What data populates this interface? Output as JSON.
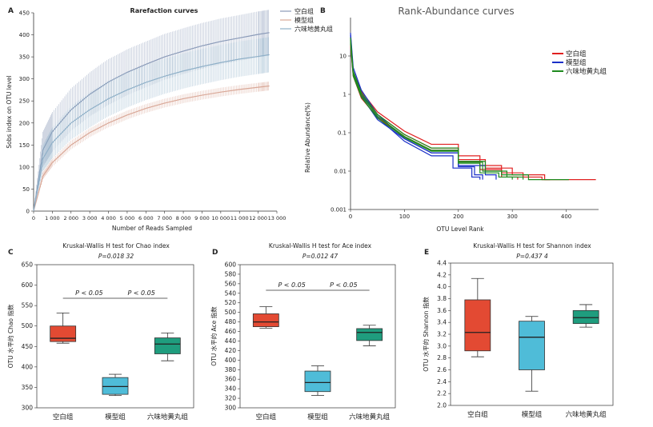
{
  "chart_data": [
    {
      "panel": "A",
      "type": "line",
      "title": "Rarefaction curves",
      "xlabel": "Number of Reads Sampled",
      "ylabel": "Sobs index on OTU level",
      "xlim": [
        0,
        13000
      ],
      "ylim": [
        0,
        450
      ],
      "xticks": [
        0,
        1000,
        2000,
        3000,
        4000,
        5000,
        6000,
        7000,
        8000,
        9000,
        10000,
        11000,
        12000,
        13000
      ],
      "xtick_labels": [
        "0",
        "1 000",
        "2 000",
        "3 000",
        "4 000",
        "5 000",
        "6 000",
        "7 000",
        "8 000",
        "9 000",
        "10 000",
        "11 000",
        "12 000",
        "13 000"
      ],
      "yticks": [
        0,
        50,
        100,
        150,
        200,
        250,
        300,
        350,
        400,
        450
      ],
      "legend": [
        "空白组",
        "模型组",
        "六味地黄丸组"
      ],
      "x": [
        0,
        500,
        1000,
        2000,
        3000,
        4000,
        5000,
        6000,
        7000,
        8000,
        9000,
        10000,
        11000,
        12000,
        12600
      ],
      "series": [
        {
          "name": "空白组",
          "color": "#8a9ab8",
          "values": [
            0,
            140,
            180,
            230,
            265,
            293,
            315,
            333,
            350,
            363,
            375,
            385,
            393,
            401,
            405
          ],
          "err": [
            0,
            40,
            45,
            48,
            50,
            52,
            52,
            52,
            52,
            52,
            52,
            52,
            52,
            52,
            52
          ]
        },
        {
          "name": "模型组",
          "color": "#d9a898",
          "values": [
            0,
            80,
            110,
            150,
            178,
            200,
            218,
            233,
            245,
            255,
            263,
            270,
            276,
            281,
            284
          ],
          "err": [
            0,
            8,
            9,
            10,
            10,
            10,
            10,
            10,
            10,
            10,
            10,
            10,
            10,
            10,
            10
          ]
        },
        {
          "name": "六味地黄丸组",
          "color": "#8fb0c8",
          "values": [
            0,
            120,
            155,
            200,
            230,
            255,
            275,
            292,
            306,
            318,
            328,
            337,
            345,
            351,
            355
          ],
          "err": [
            0,
            30,
            35,
            38,
            40,
            40,
            40,
            40,
            40,
            40,
            40,
            40,
            40,
            40,
            40
          ]
        }
      ]
    },
    {
      "panel": "B",
      "type": "line",
      "title": "Rank-Abundance curves",
      "xlabel": "OTU Level Rank",
      "ylabel": "Relative Abundance(%)",
      "y_scale": "log",
      "ylim": [
        0.001,
        100
      ],
      "xlim": [
        0,
        460
      ],
      "xticks": [
        0,
        100,
        200,
        300,
        400
      ],
      "yticks": [
        0.001,
        0.01,
        0.1,
        1,
        10
      ],
      "ytick_labels": [
        "0.001",
        "0.01",
        "0.1",
        "1",
        "10"
      ],
      "legend": [
        "空白组",
        "模型组",
        "六味地黄丸组"
      ],
      "series": [
        {
          "name": "空白组",
          "color": "#e02020",
          "curves": [
            {
              "x": [
                0,
                5,
                20,
                50,
                100,
                150,
                200,
                240,
                280,
                320,
                355,
                370
              ],
              "y": [
                30,
                4,
                1.2,
                0.35,
                0.11,
                0.05,
                0.025,
                0.014,
                0.009,
                0.007,
                0.006,
                0.006
              ]
            },
            {
              "x": [
                0,
                5,
                20,
                50,
                100,
                150,
                200,
                250,
                300,
                360,
                400,
                455
              ],
              "y": [
                25,
                3.5,
                1.0,
                0.3,
                0.09,
                0.04,
                0.02,
                0.012,
                0.008,
                0.006,
                0.006,
                0.006
              ]
            },
            {
              "x": [
                0,
                5,
                20,
                50,
                100,
                150,
                200,
                240,
                280,
                310
              ],
              "y": [
                20,
                3,
                0.8,
                0.25,
                0.08,
                0.035,
                0.018,
                0.011,
                0.007,
                0.006
              ]
            }
          ]
        },
        {
          "name": "模型组",
          "color": "#1a2fc8",
          "curves": [
            {
              "x": [
                0,
                5,
                20,
                50,
                100,
                150,
                200,
                230,
                245
              ],
              "y": [
                40,
                5,
                1.3,
                0.3,
                0.07,
                0.03,
                0.013,
                0.008,
                0.006
              ]
            },
            {
              "x": [
                0,
                5,
                20,
                50,
                100,
                150,
                190,
                225,
                240
              ],
              "y": [
                35,
                4,
                1.1,
                0.25,
                0.06,
                0.025,
                0.012,
                0.007,
                0.006
              ]
            },
            {
              "x": [
                0,
                5,
                20,
                50,
                100,
                150,
                200,
                250,
                270
              ],
              "y": [
                28,
                3.5,
                0.9,
                0.22,
                0.07,
                0.03,
                0.014,
                0.008,
                0.006
              ]
            }
          ]
        },
        {
          "name": "六味地黄丸组",
          "color": "#1e8a1e",
          "curves": [
            {
              "x": [
                0,
                5,
                20,
                50,
                100,
                150,
                200,
                250,
                290,
                320
              ],
              "y": [
                30,
                4,
                1.1,
                0.3,
                0.09,
                0.04,
                0.018,
                0.01,
                0.007,
                0.006
              ]
            },
            {
              "x": [
                0,
                5,
                20,
                50,
                100,
                150,
                200,
                240,
                275,
                300
              ],
              "y": [
                26,
                3.5,
                0.95,
                0.27,
                0.08,
                0.035,
                0.016,
                0.009,
                0.007,
                0.006
              ]
            },
            {
              "x": [
                0,
                5,
                20,
                50,
                100,
                150,
                200,
                245,
                280,
                330,
                405
              ],
              "y": [
                22,
                3,
                0.85,
                0.24,
                0.075,
                0.033,
                0.017,
                0.01,
                0.008,
                0.006,
                0.006
              ]
            }
          ]
        }
      ]
    },
    {
      "panel": "C",
      "type": "box",
      "title": "Kruskal-Wallis H test for Chao index",
      "pvalue": "P=0.018 32",
      "ylabel": "OTU 水平的 Chao 指数",
      "ylim": [
        300,
        650
      ],
      "yticks": [
        300,
        350,
        400,
        450,
        500,
        550,
        600,
        650
      ],
      "categories": [
        "空白组",
        "模型组",
        "六味地黄丸组"
      ],
      "colors": [
        "#e34a33",
        "#4fbcd8",
        "#1f9d7e"
      ],
      "boxes": [
        {
          "min": 458,
          "q1": 462,
          "median": 470,
          "q3": 500,
          "max": 532
        },
        {
          "min": 330,
          "q1": 333,
          "median": 352,
          "q3": 374,
          "max": 382
        },
        {
          "min": 415,
          "q1": 432,
          "median": 456,
          "q3": 471,
          "max": 483
        }
      ],
      "annotations": [
        "P < 0.05",
        "P < 0.05"
      ]
    },
    {
      "panel": "D",
      "type": "box",
      "title": "Kruskal-Wallis H test for Ace index",
      "pvalue": "P=0.012 47",
      "ylabel": "OTU 水平的 Ace 指数",
      "ylim": [
        300,
        600
      ],
      "yticks": [
        300,
        320,
        340,
        360,
        380,
        400,
        420,
        440,
        460,
        480,
        500,
        520,
        540,
        560,
        580,
        600
      ],
      "categories": [
        "空白组",
        "模型组",
        "六味地黄丸组"
      ],
      "colors": [
        "#e34a33",
        "#4fbcd8",
        "#1f9d7e"
      ],
      "boxes": [
        {
          "min": 467,
          "q1": 470,
          "median": 480,
          "q3": 497,
          "max": 512
        },
        {
          "min": 326,
          "q1": 334,
          "median": 353,
          "q3": 377,
          "max": 388
        },
        {
          "min": 430,
          "q1": 441,
          "median": 458,
          "q3": 466,
          "max": 473
        }
      ],
      "annotations": [
        "P < 0.05",
        "P < 0.05"
      ]
    },
    {
      "panel": "E",
      "type": "box",
      "title": "Kruskal-Wallis H test for Shannon index",
      "pvalue": "P=0.437 4",
      "ylabel": "OTU 水平的 Shannon 指数",
      "ylim": [
        2.0,
        4.4
      ],
      "yticks": [
        2.0,
        2.2,
        2.4,
        2.6,
        2.8,
        3.0,
        3.2,
        3.4,
        3.6,
        3.8,
        4.0,
        4.2,
        4.4
      ],
      "categories": [
        "空白组",
        "模型组",
        "六味地黄丸组"
      ],
      "colors": [
        "#e34a33",
        "#4fbcd8",
        "#1f9d7e"
      ],
      "boxes": [
        {
          "min": 2.82,
          "q1": 2.92,
          "median": 3.23,
          "q3": 3.78,
          "max": 4.14
        },
        {
          "min": 2.24,
          "q1": 2.6,
          "median": 3.15,
          "q3": 3.42,
          "max": 3.5
        },
        {
          "min": 3.32,
          "q1": 3.38,
          "median": 3.48,
          "q3": 3.6,
          "max": 3.7
        }
      ]
    }
  ]
}
